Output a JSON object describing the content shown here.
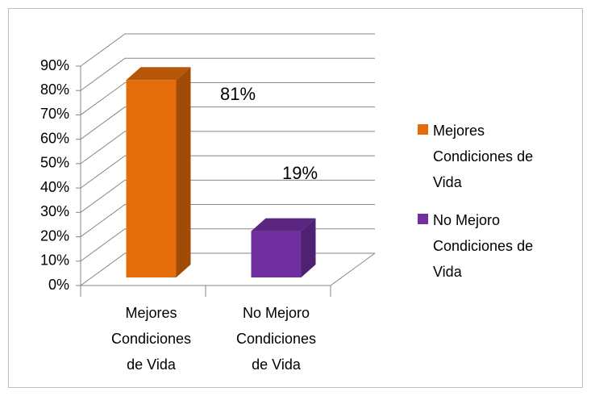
{
  "chart_data": {
    "type": "bar",
    "categories": [
      "Mejores Condiciones de Vida",
      "No Mejoro Condiciones de Vida"
    ],
    "values": [
      81,
      19
    ],
    "value_labels": [
      "81%",
      "19%"
    ],
    "colors": [
      "#e46c0a",
      "#7030a0"
    ],
    "ylim": [
      0,
      90
    ],
    "yticks": [
      {
        "value": 0,
        "label": "0%"
      },
      {
        "value": 10,
        "label": "10%"
      },
      {
        "value": 20,
        "label": "20%"
      },
      {
        "value": 30,
        "label": "30%"
      },
      {
        "value": 40,
        "label": "40%"
      },
      {
        "value": 50,
        "label": "50%"
      },
      {
        "value": 60,
        "label": "60%"
      },
      {
        "value": 70,
        "label": "70%"
      },
      {
        "value": 80,
        "label": "80%"
      },
      {
        "value": 90,
        "label": "90%"
      }
    ],
    "grid": true,
    "legend": "right"
  }
}
